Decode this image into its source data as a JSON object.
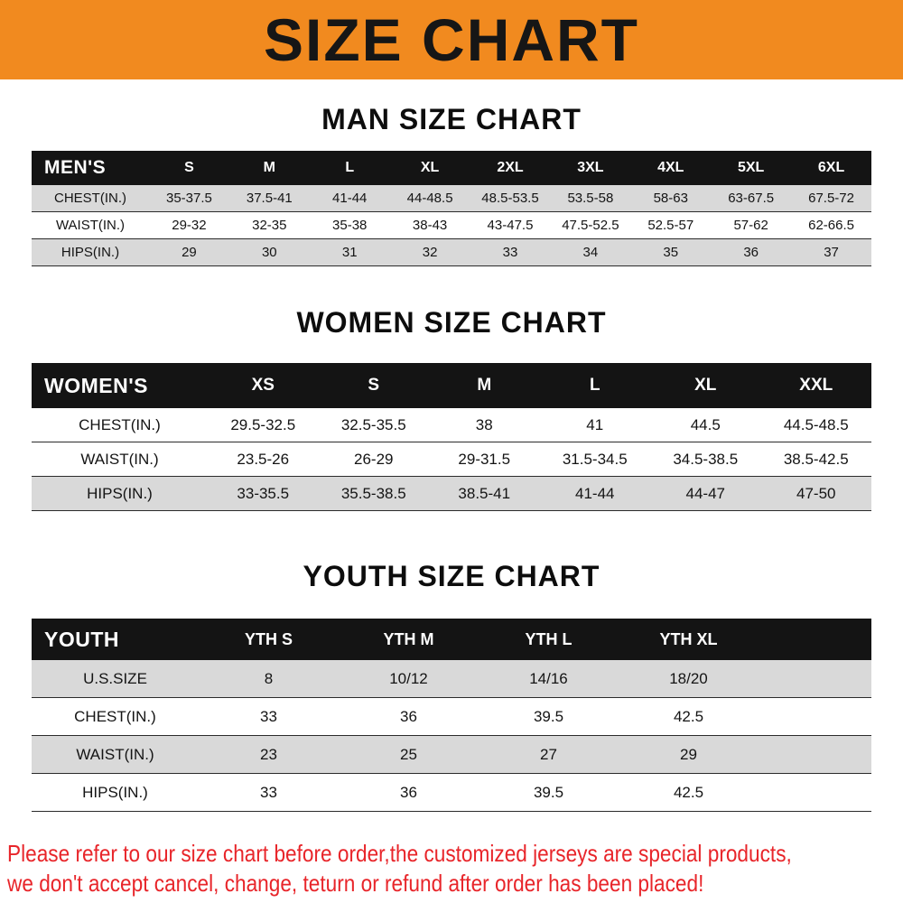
{
  "banner": {
    "title": "SIZE CHART"
  },
  "sections": [
    {
      "heading": "MAN SIZE CHART",
      "table": {
        "label": "MEN'S",
        "columns": [
          "S",
          "M",
          "L",
          "XL",
          "2XL",
          "3XL",
          "4XL",
          "5XL",
          "6XL"
        ],
        "rows": [
          {
            "label": "CHEST(IN.)",
            "values": [
              "35-37.5",
              "37.5-41",
              "41-44",
              "44-48.5",
              "48.5-53.5",
              "53.5-58",
              "58-63",
              "63-67.5",
              "67.5-72"
            ]
          },
          {
            "label": "WAIST(IN.)",
            "values": [
              "29-32",
              "32-35",
              "35-38",
              "38-43",
              "43-47.5",
              "47.5-52.5",
              "52.5-57",
              "57-62",
              "62-66.5"
            ]
          },
          {
            "label": "HIPS(IN.)",
            "values": [
              "29",
              "30",
              "31",
              "32",
              "33",
              "34",
              "35",
              "36",
              "37"
            ]
          }
        ]
      }
    },
    {
      "heading": "WOMEN SIZE CHART",
      "table": {
        "label": "WOMEN'S",
        "columns": [
          "XS",
          "S",
          "M",
          "L",
          "XL",
          "XXL"
        ],
        "rows": [
          {
            "label": "CHEST(IN.)",
            "values": [
              "29.5-32.5",
              "32.5-35.5",
              "38",
              "41",
              "44.5",
              "44.5-48.5"
            ]
          },
          {
            "label": "WAIST(IN.)",
            "values": [
              "23.5-26",
              "26-29",
              "29-31.5",
              "31.5-34.5",
              "34.5-38.5",
              "38.5-42.5"
            ]
          },
          {
            "label": "HIPS(IN.)",
            "values": [
              "33-35.5",
              "35.5-38.5",
              "38.5-41",
              "41-44",
              "44-47",
              "47-50"
            ]
          }
        ]
      }
    },
    {
      "heading": "YOUTH SIZE CHART",
      "table": {
        "label": "YOUTH",
        "columns": [
          "YTH S",
          "YTH M",
          "YTH L",
          "YTH XL"
        ],
        "rows": [
          {
            "label": "U.S.SIZE",
            "values": [
              "8",
              "10/12",
              "14/16",
              "18/20"
            ]
          },
          {
            "label": "CHEST(IN.)",
            "values": [
              "33",
              "36",
              "39.5",
              "42.5"
            ]
          },
          {
            "label": "WAIST(IN.)",
            "values": [
              "23",
              "25",
              "27",
              "29"
            ]
          },
          {
            "label": "HIPS(IN.)",
            "values": [
              "33",
              "36",
              "39.5",
              "42.5"
            ]
          }
        ]
      }
    }
  ],
  "footer": {
    "line1": "Please refer to our size chart before order,the customized jerseys are special products,",
    "line2": "we don't accept cancel, change, teturn or refund after order has been placed!"
  },
  "colors": {
    "banner_bg": "#f18a1f",
    "header_bg": "#141414",
    "row_gray": "#d9d9d9",
    "footer_red": "#e8252a"
  }
}
